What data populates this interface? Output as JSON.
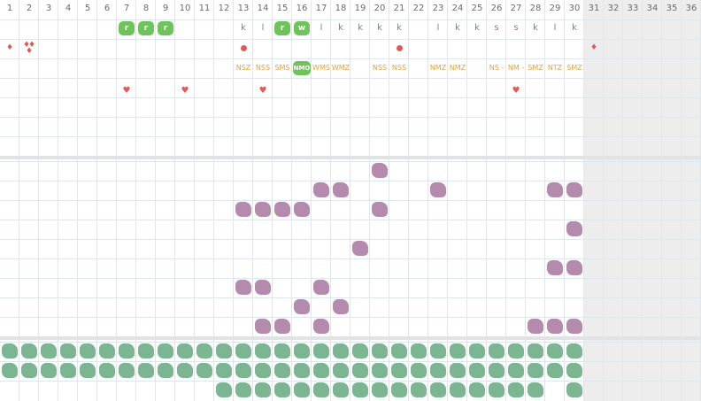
{
  "day_numbers": [
    "1",
    "2",
    "3",
    "4",
    "5",
    "6",
    "7",
    "8",
    "9",
    "10",
    "11",
    "12",
    "13",
    "14",
    "15",
    "16",
    "17",
    "18",
    "19",
    "20",
    "21",
    "22",
    "23",
    "24",
    "25",
    "26",
    "27",
    "28",
    "29",
    "30",
    "31",
    "32",
    "33",
    "34",
    "35",
    "36"
  ],
  "row1_tags": [
    {
      "col": 7,
      "label": "r",
      "style": "green"
    },
    {
      "col": 8,
      "label": "r",
      "style": "green"
    },
    {
      "col": 9,
      "label": "r",
      "style": "green"
    },
    {
      "col": 13,
      "label": "k",
      "style": "text"
    },
    {
      "col": 14,
      "label": "l",
      "style": "text"
    },
    {
      "col": 15,
      "label": "r",
      "style": "green"
    },
    {
      "col": 16,
      "label": "w",
      "style": "green"
    },
    {
      "col": 17,
      "label": "l",
      "style": "text"
    },
    {
      "col": 18,
      "label": "k",
      "style": "text"
    },
    {
      "col": 19,
      "label": "k",
      "style": "text"
    },
    {
      "col": 20,
      "label": "k",
      "style": "text"
    },
    {
      "col": 21,
      "label": "k",
      "style": "text"
    },
    {
      "col": 23,
      "label": "l",
      "style": "text"
    },
    {
      "col": 24,
      "label": "k",
      "style": "text"
    },
    {
      "col": 25,
      "label": "k",
      "style": "text"
    },
    {
      "col": 26,
      "label": "s",
      "style": "text"
    },
    {
      "col": 27,
      "label": "s",
      "style": "text"
    },
    {
      "col": 28,
      "label": "k",
      "style": "text"
    },
    {
      "col": 29,
      "label": "l",
      "style": "text"
    },
    {
      "col": 30,
      "label": "k",
      "style": "text"
    }
  ],
  "row2_marks": [
    {
      "col": 1,
      "type": "drop"
    },
    {
      "col": 2,
      "type": "drops"
    },
    {
      "col": 13,
      "type": "dot"
    },
    {
      "col": 21,
      "type": "dot"
    },
    {
      "col": 31,
      "type": "drop"
    }
  ],
  "row3_codes": [
    {
      "col": 13,
      "label": "NŚZ",
      "style": "text"
    },
    {
      "col": 14,
      "label": "NŚŚ",
      "style": "text"
    },
    {
      "col": 15,
      "label": "ŚMŚ",
      "style": "text"
    },
    {
      "col": 16,
      "label": "NMO",
      "style": "green"
    },
    {
      "col": 17,
      "label": "WMŚ",
      "style": "text"
    },
    {
      "col": 18,
      "label": "WMZ",
      "style": "text"
    },
    {
      "col": 20,
      "label": "NŚŚ",
      "style": "text"
    },
    {
      "col": 21,
      "label": "NŚŚ",
      "style": "text"
    },
    {
      "col": 23,
      "label": "NMZ",
      "style": "text"
    },
    {
      "col": 24,
      "label": "NMZ",
      "style": "text"
    },
    {
      "col": 26,
      "label": "NŚ -",
      "style": "text"
    },
    {
      "col": 27,
      "label": "NM -",
      "style": "text"
    },
    {
      "col": 28,
      "label": "ŚMZ",
      "style": "text"
    },
    {
      "col": 29,
      "label": "NTZ",
      "style": "text"
    },
    {
      "col": 30,
      "label": "ŚMZ",
      "style": "text"
    }
  ],
  "row4_hearts": [
    7,
    10,
    14,
    27
  ],
  "symptom_rows": [
    [
      20
    ],
    [
      17,
      18,
      23,
      29,
      30
    ],
    [
      13,
      14,
      15,
      16,
      20
    ],
    [
      30
    ],
    [
      19
    ],
    [
      29,
      30
    ],
    [
      13,
      14,
      17
    ],
    [
      16,
      18
    ],
    [
      14,
      15,
      17,
      28,
      29,
      30
    ]
  ],
  "green_rows": [
    [
      1,
      2,
      3,
      4,
      5,
      6,
      7,
      8,
      9,
      10,
      11,
      12,
      13,
      14,
      15,
      16,
      17,
      18,
      19,
      20,
      21,
      22,
      23,
      24,
      25,
      26,
      27,
      28,
      29,
      30
    ],
    [
      1,
      2,
      3,
      4,
      5,
      6,
      7,
      8,
      9,
      10,
      11,
      12,
      13,
      14,
      15,
      16,
      17,
      18,
      19,
      20,
      21,
      22,
      23,
      24,
      25,
      26,
      27,
      28,
      29,
      30
    ],
    [
      12,
      13,
      14,
      15,
      16,
      17,
      18,
      19,
      20,
      21,
      22,
      23,
      24,
      25,
      26,
      27,
      28,
      30
    ]
  ],
  "colors": {
    "grid_line": "#dce7ef",
    "tag_green": "#6fc35b",
    "letter": "#9b7486",
    "code": "#e8a13b",
    "marker_red": "#e05a5a",
    "symptom_purple": "#b48aad",
    "blob_green": "#7cb592",
    "future_gray": "#ededed"
  }
}
